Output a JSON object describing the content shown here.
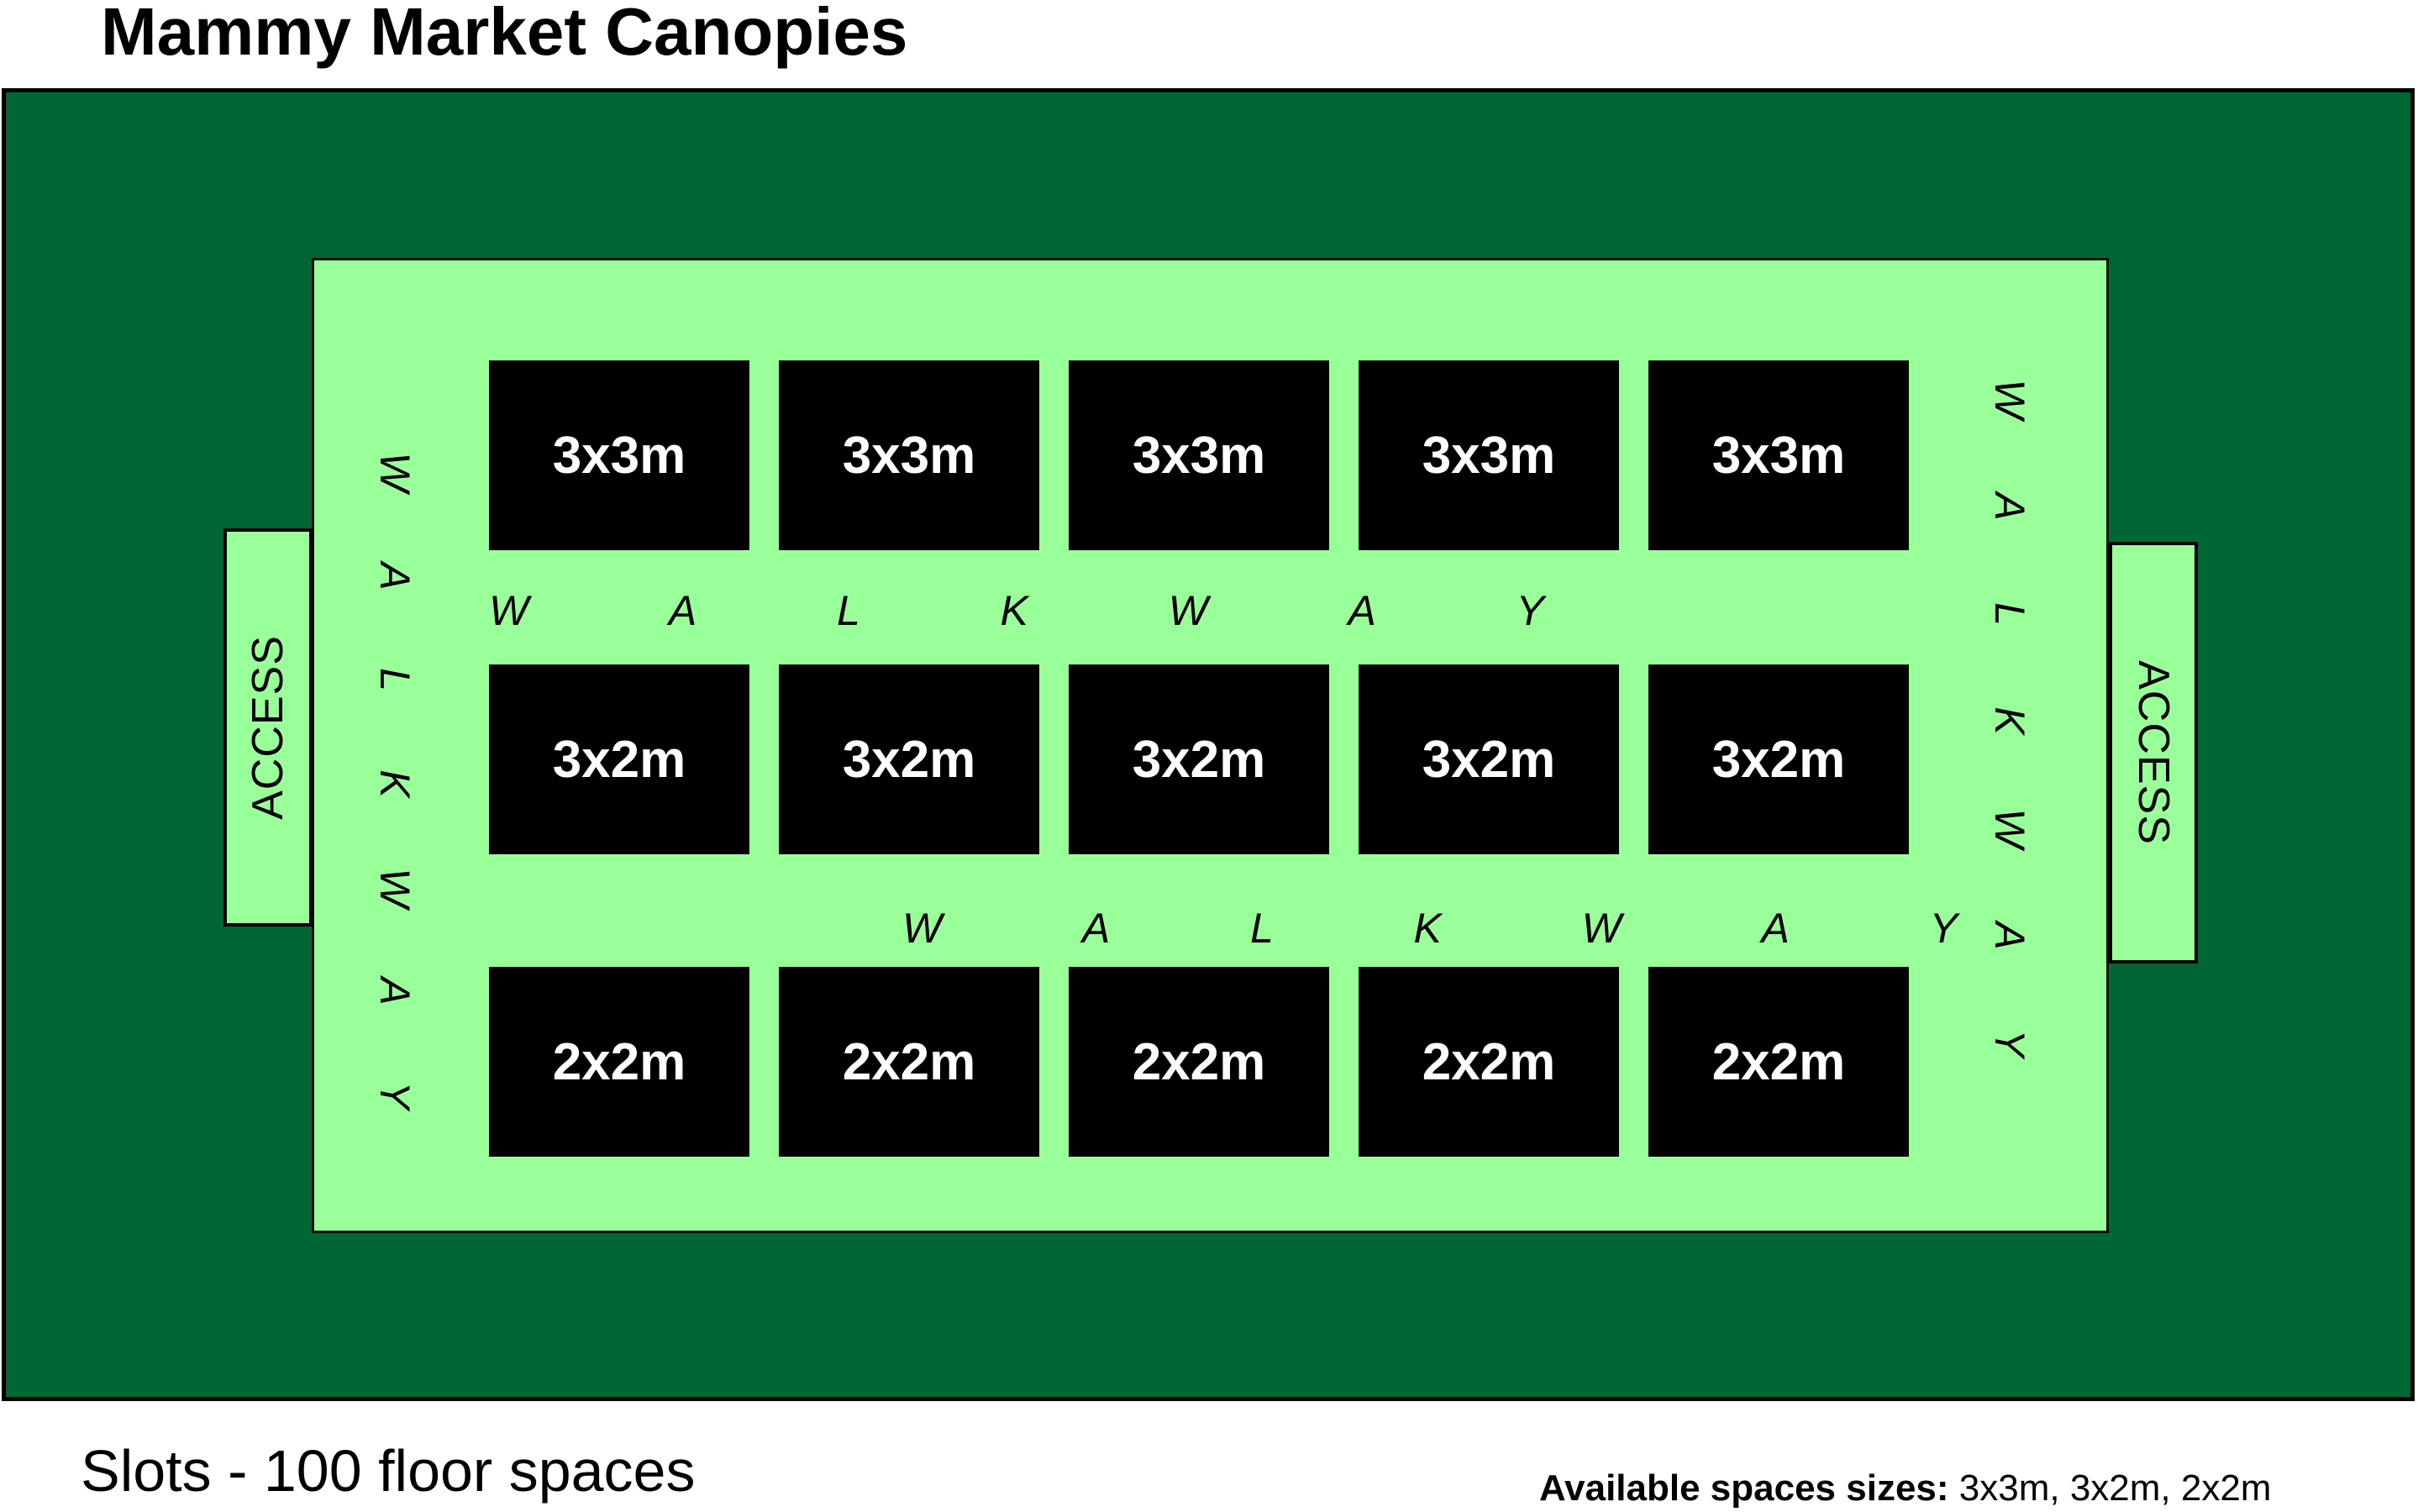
{
  "title": "Mammy Market Canopies",
  "market": {
    "walkway_word": "WALKWAY",
    "access_label": "ACCESS",
    "rows": [
      {
        "size_label": "3x3m",
        "count": 5
      },
      {
        "size_label": "3x2m",
        "count": 5
      },
      {
        "size_label": "2x2m",
        "count": 5
      }
    ]
  },
  "legend": {
    "slots_text": "Slots - 100 floor spaces",
    "available_label": "Available spaces sizes:",
    "available_values": "3x3m, 3x2m, 2x2m"
  },
  "colors": {
    "field_green": "#006633",
    "floor_green": "#99FF99",
    "stall_fill": "#000000",
    "stall_text": "#FFFFFF"
  }
}
